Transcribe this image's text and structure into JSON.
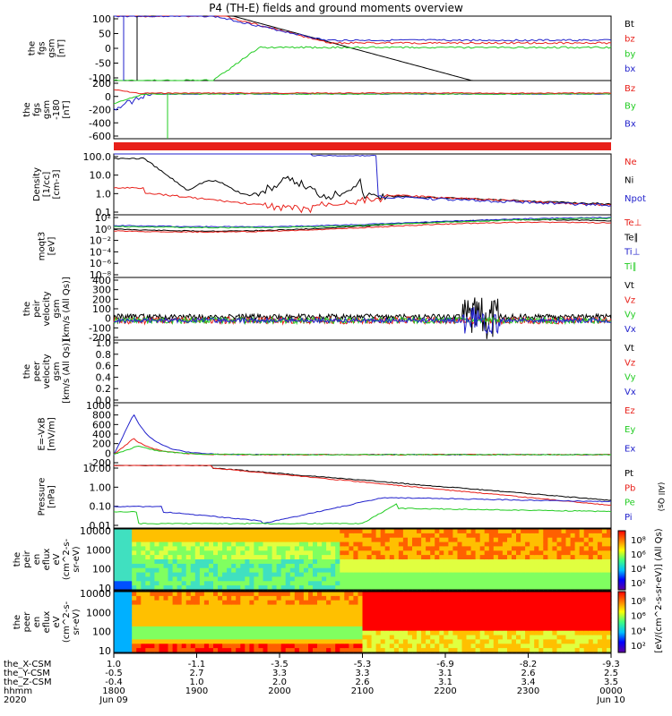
{
  "title": "P4 (TH-E) fields and ground moments overview",
  "colors": {
    "black": "#000000",
    "red": "#e8201a",
    "green": "#22cc22",
    "blue": "#2222cc"
  },
  "chart_data": [
    {
      "type": "line",
      "ylabel": [
        "the",
        "fgs",
        "gsm",
        "[nT]"
      ],
      "yticks": [
        100,
        50,
        0,
        -50,
        -100
      ],
      "ylim": [
        -100,
        100
      ],
      "legend": [
        {
          "name": "Bt",
          "color": "black"
        },
        {
          "name": "bz",
          "color": "red"
        },
        {
          "name": "by",
          "color": "green"
        },
        {
          "name": "bx",
          "color": "blue"
        }
      ]
    },
    {
      "type": "line",
      "ylabel": [
        "the",
        "fgs",
        "gsm",
        "-180",
        "[nT]"
      ],
      "yticks": [
        200,
        0,
        -200,
        -400,
        -600
      ],
      "ylim": [
        -700,
        200
      ],
      "legend": [
        {
          "name": "Bz",
          "color": "red"
        },
        {
          "name": "By",
          "color": "green"
        },
        {
          "name": "Bx",
          "color": "blue"
        }
      ]
    },
    {
      "type": "line",
      "ylabel": [
        "Density",
        "[1/cc]",
        "[cm-3]"
      ],
      "yticks": [
        "100.0",
        "10.0",
        "1.0",
        "0.1"
      ],
      "scale": "log",
      "legend": [
        {
          "name": "Ne",
          "color": "red"
        },
        {
          "name": "Ni",
          "color": "black"
        },
        {
          "name": "Npot",
          "color": "blue"
        }
      ]
    },
    {
      "type": "line",
      "ylabel": [
        "moqt3",
        "[eV]"
      ],
      "yticks": [
        "10²",
        "10⁰",
        "10⁻²",
        "10⁻⁴",
        "10⁻⁶",
        "10⁻⁸"
      ],
      "scale": "log",
      "legend": [
        {
          "name": "Te⊥",
          "color": "red"
        },
        {
          "name": "Te∥",
          "color": "black"
        },
        {
          "name": "Ti⊥",
          "color": "blue"
        },
        {
          "name": "Ti∥",
          "color": "green"
        }
      ]
    },
    {
      "type": "line",
      "ylabel": [
        "the",
        "peir",
        "velocity",
        "gsm",
        "[km/s (All Qs)]"
      ],
      "yticks": [
        400,
        300,
        200,
        100,
        0,
        -100,
        -200
      ],
      "ylim": [
        -200,
        400
      ],
      "legend": [
        {
          "name": "Vt",
          "color": "black"
        },
        {
          "name": "Vz",
          "color": "red"
        },
        {
          "name": "Vy",
          "color": "green"
        },
        {
          "name": "Vx",
          "color": "blue"
        }
      ]
    },
    {
      "type": "line",
      "ylabel": [
        "the",
        "peer",
        "velocity",
        "gsm",
        "[km/s (All Qs)]"
      ],
      "yticks": [
        "1.0",
        "0.8",
        "0.6",
        "0.4",
        "0.2",
        "0.0"
      ],
      "ylim": [
        0,
        1
      ],
      "legend": [
        {
          "name": "Vt",
          "color": "black"
        },
        {
          "name": "Vz",
          "color": "red"
        },
        {
          "name": "Vy",
          "color": "green"
        },
        {
          "name": "Vx",
          "color": "blue"
        }
      ]
    },
    {
      "type": "line",
      "ylabel": [
        "E=-VxB",
        "[mV/m]"
      ],
      "yticks": [
        1000,
        800,
        600,
        400,
        200,
        0,
        -200
      ],
      "ylim": [
        -200,
        1000
      ],
      "legend": [
        {
          "name": "Ez",
          "color": "red"
        },
        {
          "name": "Ey",
          "color": "green"
        },
        {
          "name": "Ex",
          "color": "blue"
        }
      ]
    },
    {
      "type": "line",
      "ylabel": [
        "Pressure",
        "[nPa]"
      ],
      "yticks": [
        "10.00",
        "1.00",
        "0.10",
        "0.01"
      ],
      "scale": "log",
      "legend": [
        {
          "name": "Pt",
          "color": "black"
        },
        {
          "name": "Pb",
          "color": "red"
        },
        {
          "name": "Pe",
          "color": "green"
        },
        {
          "name": "Pi",
          "color": "blue"
        }
      ],
      "side_label": "(All Qs)"
    },
    {
      "type": "heatmap",
      "ylabel": [
        "the",
        "peir",
        "en",
        "eflux",
        "eV",
        "(cm^2-s-",
        "sr-eV)"
      ],
      "yticks": [
        "10000",
        "1000",
        "100",
        "10"
      ],
      "scale": "log"
    },
    {
      "type": "heatmap",
      "ylabel": [
        "the",
        "peer",
        "en",
        "eflux",
        "eV",
        "(cm^2-s-",
        "sr-eV)"
      ],
      "yticks": [
        "10000",
        "1000",
        "100",
        "10"
      ],
      "scale": "log"
    }
  ],
  "colorbar": {
    "ticks": [
      "10⁸",
      "10⁶",
      "10⁴",
      "10²"
    ],
    "label": "[eV/(cm^2-s-sr-eV)] (All Qs)"
  },
  "x_axis": {
    "row_labels": [
      "the_X-CSM",
      "the_Y-CSM",
      "the_Z-CSM",
      "hhmm",
      "2020"
    ],
    "columns": [
      [
        "1.0",
        "-0.5",
        "-0.4",
        "1800",
        "Jun 09"
      ],
      [
        "-1.1",
        "2.7",
        "1.0",
        "1900",
        ""
      ],
      [
        "-3.5",
        "3.3",
        "2.0",
        "2000",
        ""
      ],
      [
        "-5.3",
        "3.3",
        "2.6",
        "2100",
        ""
      ],
      [
        "-6.9",
        "3.1",
        "3.1",
        "2200",
        ""
      ],
      [
        "-8.2",
        "2.6",
        "3.4",
        "2300",
        ""
      ],
      [
        "-9.3",
        "2.5",
        "3.5",
        "0000",
        "Jun 10"
      ]
    ]
  }
}
